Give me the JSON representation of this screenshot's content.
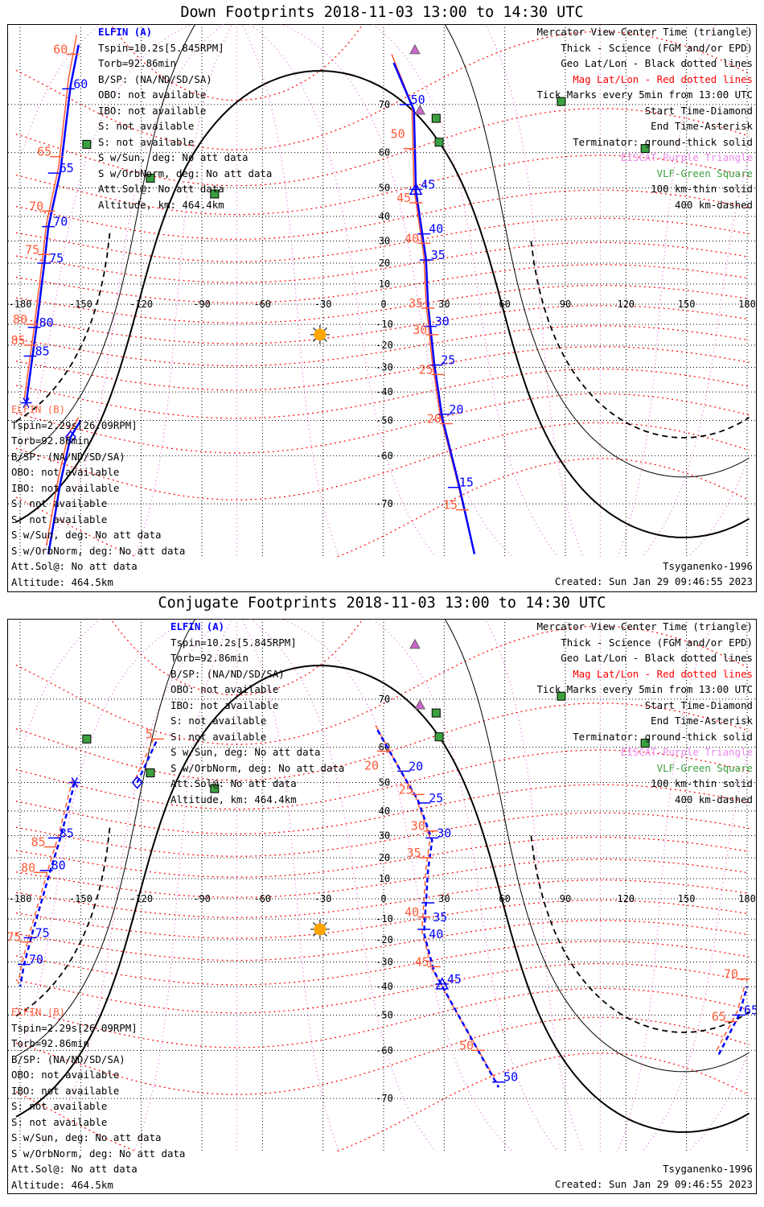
{
  "colors": {
    "track": "#0000ff",
    "mag_track": "#ff5a36",
    "mag_lat": "#ff0000",
    "mag_lon": "#e066e0",
    "grid": "#000000",
    "vlf": "#3ca040",
    "eiscat": "#cc66cc",
    "sun": "#ffa500"
  },
  "panels": [
    {
      "title": "Down Footprints 2018-11-03 13:00 to 14:30 UTC",
      "sat_a": {
        "name": "ELFIN (A)",
        "lines": [
          "Tspin=10.2s[5.845RPM]",
          "Torb=92.86min",
          "B/SP: (NA/ND/SD/SA)",
          "OBO: not available",
          "IBO: not available",
          "S: not available",
          "S: not available",
          "S w/Sun, deg: No att data",
          "S w/OrbNorm, deg: No att data",
          "Att.Sol@: No att data",
          "Altitude, km: 464.4km"
        ]
      },
      "sat_b": {
        "name": "ELFIN (B)",
        "lines": [
          "Tspin=2.29s[26.09RPM]",
          "Torb=92.86min",
          "B/SP: (NA/ND/SD/SA)",
          "OBO: not available",
          "IBO: not available",
          "S: not available",
          "S: not available",
          "S w/Sun, deg: No att data",
          "S w/OrbNorm, deg: No att data",
          "Att.Sol@: No att data",
          "Altitude: 464.5km"
        ]
      },
      "legend": [
        {
          "text": "Mercator View Center Time (triangle)",
          "color": "#000000"
        },
        {
          "text": "Thick - Science (FGM and/or EPD)",
          "color": "#000000"
        },
        {
          "text": "Geo Lat/Lon - Black dotted lines",
          "color": "#000000"
        },
        {
          "text": "Mag Lat/Lon - Red dotted lines",
          "color": "#ff0000"
        },
        {
          "text": "Tick Marks every 5min from 13:00 UTC",
          "color": "#000000"
        },
        {
          "text": "Start Time-Diamond",
          "color": "#000000"
        },
        {
          "text": "End Time-Asterisk",
          "color": "#000000"
        },
        {
          "text": "Terminator: ground-thick solid",
          "color": "#000000"
        },
        {
          "text": "EISCAT-Purple Triangle",
          "color": "#ee88ee"
        },
        {
          "text": "VLF-Green Square",
          "color": "#3ca040"
        },
        {
          "text": "100 km-thin solid",
          "color": "#000000"
        },
        {
          "text": "400 km-dashed",
          "color": "#000000"
        }
      ],
      "model": "Tsyganenko-1996",
      "created": "Created: Sun Jan 29 09:46:55 2023",
      "dashed": false,
      "tracks": [
        {
          "points": [
            [
              -151,
              78
            ],
            [
              -155,
              73
            ],
            [
              -160,
              55
            ],
            [
              -166,
              36
            ],
            [
              -168,
              20
            ],
            [
              -172,
              -12
            ],
            [
              -174,
              -26
            ],
            [
              -177,
              -44
            ]
          ]
        },
        {
          "points": [
            [
              -150,
              -50
            ],
            [
              -155,
              -55
            ],
            [
              -160,
              -66
            ],
            [
              -166,
              -77
            ]
          ]
        },
        {
          "points": [
            [
              5,
              76
            ],
            [
              15,
              69
            ],
            [
              16,
              49
            ],
            [
              21,
              22
            ],
            [
              22,
              0
            ],
            [
              25,
              -28
            ],
            [
              29,
              -49
            ],
            [
              37,
              -66
            ],
            [
              45,
              -77
            ]
          ]
        }
      ],
      "ticks": [
        {
          "lon": -156,
          "lat": 72.5,
          "label": "60",
          "mag": false
        },
        {
          "lon": -163,
          "lat": 54.5,
          "label": "65",
          "mag": false
        },
        {
          "lon": -166,
          "lat": 36,
          "label": "70",
          "mag": false
        },
        {
          "lon": -168,
          "lat": 20,
          "label": "75",
          "mag": false
        },
        {
          "lon": -173,
          "lat": -11.5,
          "label": "80",
          "mag": false
        },
        {
          "lon": -175,
          "lat": -25,
          "label": "85",
          "mag": false
        },
        {
          "lon": -154,
          "lat": 77,
          "label": "60",
          "mag": true
        },
        {
          "lon": -162,
          "lat": 59,
          "label": "65",
          "mag": true
        },
        {
          "lon": -166,
          "lat": 42,
          "label": "70",
          "mag": true
        },
        {
          "lon": -168,
          "lat": 24,
          "label": "75",
          "mag": true
        },
        {
          "lon": -174,
          "lat": -10,
          "label": "80",
          "mag": true
        },
        {
          "lon": -175,
          "lat": -20,
          "label": "85",
          "mag": true
        },
        {
          "lon": 11,
          "lat": 70,
          "label": "50",
          "mag": false
        },
        {
          "lon": 16,
          "lat": 49.5,
          "label": "45",
          "mag": false
        },
        {
          "lon": 20,
          "lat": 33,
          "label": "40",
          "mag": false
        },
        {
          "lon": 21,
          "lat": 21.5,
          "label": "35",
          "mag": false
        },
        {
          "lon": 23,
          "lat": -11,
          "label": "30",
          "mag": false
        },
        {
          "lon": 26,
          "lat": -29,
          "label": "25",
          "mag": false
        },
        {
          "lon": 30,
          "lat": -48,
          "label": "20",
          "mag": false
        },
        {
          "lon": 35,
          "lat": -67,
          "label": "15",
          "mag": false
        },
        {
          "lon": 13,
          "lat": 61,
          "label": "50",
          "mag": true
        },
        {
          "lon": 16,
          "lat": 45,
          "label": "45",
          "mag": true
        },
        {
          "lon": 20,
          "lat": 29,
          "label": "40",
          "mag": true
        },
        {
          "lon": 22,
          "lat": -2,
          "label": "35",
          "mag": true
        },
        {
          "lon": 24,
          "lat": -15,
          "label": "30",
          "mag": true
        },
        {
          "lon": 27,
          "lat": -33,
          "label": "25",
          "mag": true
        },
        {
          "lon": 31,
          "lat": -51,
          "label": "20",
          "mag": true
        },
        {
          "lon": 39,
          "lat": -71,
          "label": "15",
          "mag": true
        }
      ],
      "center_marks": [
        {
          "lon": 16,
          "lat": 49.5
        }
      ],
      "start_marks": [
        {
          "lon": -155,
          "lat": -55
        }
      ],
      "end_marks": [
        {
          "lon": -177,
          "lat": -44
        }
      ]
    },
    {
      "title": "Conjugate Footprints 2018-11-03 13:00 to 14:30 UTC",
      "sat_a": {
        "name": "ELFIN (A)",
        "lines": [
          "Tspin=10.2s[5.845RPM]",
          "Torb=92.86min",
          "B/SP: (NA/ND/SD/SA)",
          "OBO: not available",
          "IBO: not available",
          "S: not available",
          "S: not available",
          "S w/Sun, deg: No att data",
          "S w/OrbNorm, deg: No att data",
          "Att.Sol@: No att data",
          "Altitude, km: 464.4km"
        ]
      },
      "sat_b": {
        "name": "ELFIN (B)",
        "lines": [
          "Tspin=2.29s[26.09RPM]",
          "Torb=92.86min",
          "B/SP: (NA/ND/SD/SA)",
          "OBO: not available",
          "IBO: not available",
          "S: not available",
          "S: not available",
          "S w/Sun, deg: No att data",
          "S w/OrbNorm, deg: No att data",
          "Att.Sol@: No att data",
          "Altitude: 464.5km"
        ]
      },
      "legend": [
        {
          "text": "Mercator View Center Time (triangle)",
          "color": "#000000"
        },
        {
          "text": "Thick - Science (FGM and/or EPD)",
          "color": "#000000"
        },
        {
          "text": "Geo Lat/Lon - Black dotted lines",
          "color": "#000000"
        },
        {
          "text": "Mag Lat/Lon - Red dotted lines",
          "color": "#ff0000"
        },
        {
          "text": "Tick Marks every 5min from 13:00 UTC",
          "color": "#000000"
        },
        {
          "text": "Start Time-Diamond",
          "color": "#000000"
        },
        {
          "text": "End Time-Asterisk",
          "color": "#000000"
        },
        {
          "text": "Terminator: ground-thick solid",
          "color": "#000000"
        },
        {
          "text": "EISCAT-Purple Triangle",
          "color": "#ee88ee"
        },
        {
          "text": "VLF-Green Square",
          "color": "#3ca040"
        },
        {
          "text": "100 km-thin solid",
          "color": "#000000"
        },
        {
          "text": "400 km-dashed",
          "color": "#000000"
        }
      ],
      "model": "Tsyganenko-1996",
      "created": "Created: Sun Jan 29 09:46:55 2023",
      "dashed": true,
      "tracks": [
        {
          "points": [
            [
              -153,
              50
            ],
            [
              -160,
              29
            ],
            [
              -165,
              14
            ],
            [
              -174,
              -17
            ],
            [
              -178,
              -31
            ],
            [
              -180,
              -40
            ]
          ]
        },
        {
          "points": [
            [
              -122,
              50
            ],
            [
              -112,
              62
            ]
          ]
        },
        {
          "points": [
            [
              -3,
              64
            ],
            [
              9,
              53
            ],
            [
              17,
              44
            ],
            [
              24,
              28
            ],
            [
              22,
              14
            ],
            [
              20,
              -17
            ],
            [
              25,
              -34
            ],
            [
              37,
              -50
            ],
            [
              57,
              -68
            ]
          ]
        },
        {
          "points": [
            [
              166,
              -61
            ],
            [
              176,
              -50
            ],
            [
              180,
              -40
            ]
          ]
        }
      ],
      "ticks": [
        {
          "lon": -163,
          "lat": 29,
          "label": "85",
          "mag": false
        },
        {
          "lon": -167,
          "lat": 14,
          "label": "80",
          "mag": false
        },
        {
          "lon": -175,
          "lat": -19,
          "label": "75",
          "mag": false
        },
        {
          "lon": -178,
          "lat": -31,
          "label": "70",
          "mag": false
        },
        {
          "lon": -165,
          "lat": 25,
          "label": "85",
          "mag": true
        },
        {
          "lon": -170,
          "lat": 13,
          "label": "80",
          "mag": true
        },
        {
          "lon": -177,
          "lat": -21,
          "label": "75",
          "mag": true
        },
        {
          "lon": -112,
          "lat": 62,
          "label": "5",
          "mag": true
        },
        {
          "lon": 10,
          "lat": 53.5,
          "label": "20",
          "mag": false
        },
        {
          "lon": 20,
          "lat": 43,
          "label": "25",
          "mag": false
        },
        {
          "lon": 24,
          "lat": 29,
          "label": "30",
          "mag": false
        },
        {
          "lon": 22,
          "lat": -2,
          "label": "35",
          "mag": false
        },
        {
          "lon": 20,
          "lat": -15,
          "label": "40",
          "mag": false
        },
        {
          "lon": 29,
          "lat": -39,
          "label": "45",
          "mag": false
        },
        {
          "lon": 57,
          "lat": -67,
          "label": "50",
          "mag": false
        },
        {
          "lon": 0,
          "lat": 59,
          "label": "20",
          "mag": true
        },
        {
          "lon": 17,
          "lat": 46,
          "label": "25",
          "mag": true
        },
        {
          "lon": 23,
          "lat": 32,
          "label": "30",
          "mag": true
        },
        {
          "lon": 21,
          "lat": 20,
          "label": "35",
          "mag": true
        },
        {
          "lon": 20,
          "lat": -9,
          "label": "40",
          "mag": true
        },
        {
          "lon": 25,
          "lat": -32,
          "label": "45",
          "mag": true
        },
        {
          "lon": 47,
          "lat": -60,
          "label": "50",
          "mag": true
        },
        {
          "lon": 176,
          "lat": -50,
          "label": "65",
          "mag": false
        },
        {
          "lon": 172,
          "lat": -52,
          "label": "65",
          "mag": true
        },
        {
          "lon": 178,
          "lat": -37,
          "label": "70",
          "mag": true
        }
      ],
      "center_marks": [
        {
          "lon": 29,
          "lat": -39
        }
      ],
      "start_marks": [
        {
          "lon": -122,
          "lat": 50
        }
      ],
      "end_marks": [
        {
          "lon": -153,
          "lat": 50
        }
      ]
    }
  ],
  "map": {
    "lon_ticks": [
      -180,
      -150,
      -120,
      -90,
      -60,
      -30,
      0,
      30,
      60,
      90,
      120,
      150,
      180
    ],
    "lat_ticks": [
      70,
      60,
      50,
      40,
      30,
      20,
      10,
      0,
      -10,
      -20,
      -30,
      -40,
      -50,
      -60,
      -70
    ],
    "subsolar": {
      "lon": -31.5,
      "lat": -15
    },
    "dipole_pole": {
      "lon": -72.7,
      "lat": 80.7
    },
    "vlf_stations": [
      [
        -147,
        62
      ],
      [
        -115.5,
        53
      ],
      [
        -83.7,
        48
      ],
      [
        26,
        67.5
      ],
      [
        27.5,
        62.5
      ],
      [
        88,
        70.5
      ],
      [
        129.5,
        61
      ]
    ],
    "eiscat_stations": [
      [
        15.5,
        77.5
      ],
      [
        18,
        69
      ]
    ]
  }
}
